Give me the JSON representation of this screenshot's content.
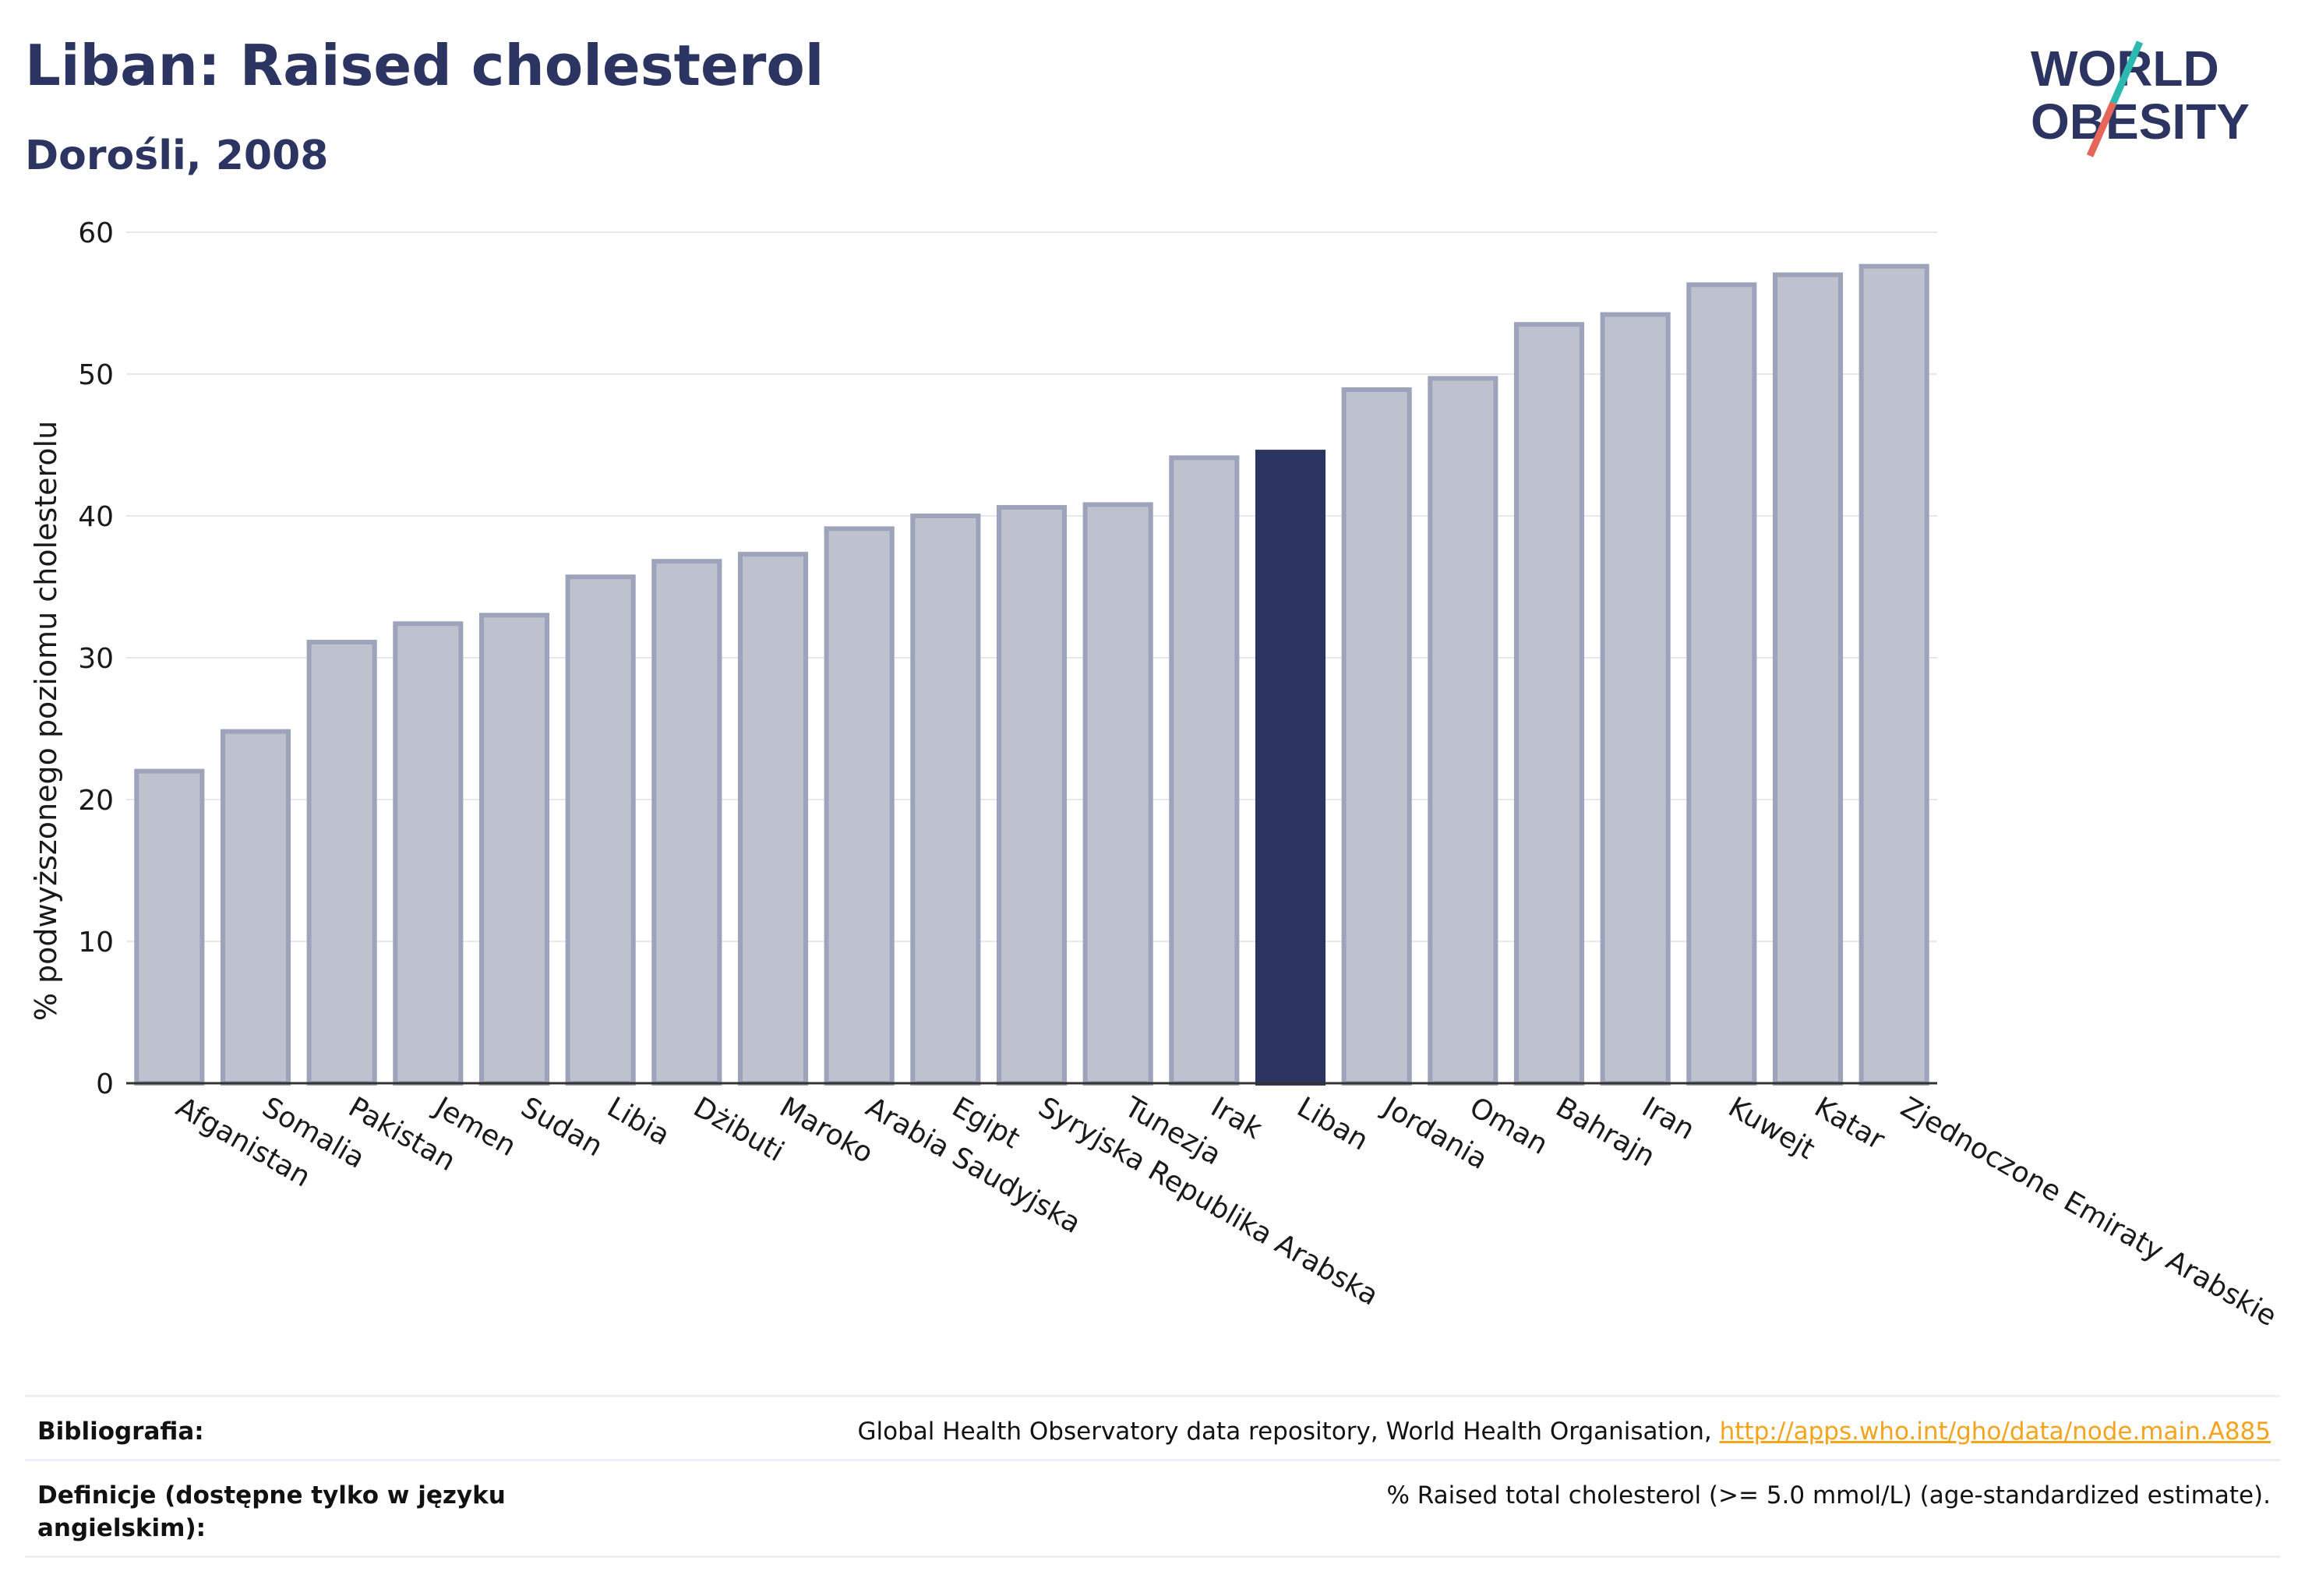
{
  "header": {
    "title": "Liban: Raised cholesterol",
    "subtitle": "Dorośli, 2008"
  },
  "logo": {
    "line1": "WORLD",
    "line2": "OBESITY"
  },
  "colors": {
    "bar_fill": "#bec2cf",
    "bar_stroke": "#9da3ba",
    "highlight": "#2c3561",
    "grid": "#e6e8ee",
    "text": "#1a1a1a",
    "link": "#f3a41c",
    "logo_teal": "#2bb9b0",
    "logo_red": "#e5675a"
  },
  "chart_data": {
    "type": "bar",
    "title": "Liban: Raised cholesterol",
    "subtitle": "Dorośli, 2008",
    "xlabel": "",
    "ylabel": "% podwyższonego poziomu cholesterolu",
    "ylim": [
      0,
      60
    ],
    "yticks": [
      0,
      10,
      20,
      30,
      40,
      50,
      60
    ],
    "grid": true,
    "highlight": "Liban",
    "categories": [
      "Afganistan",
      "Somalia",
      "Pakistan",
      "Jemen",
      "Sudan",
      "Libia",
      "Dżibuti",
      "Maroko",
      "Arabia Saudyjska",
      "Egipt",
      "Syryjska Republika Arabska",
      "Tunezja",
      "Irak",
      "Liban",
      "Jordania",
      "Oman",
      "Bahrajn",
      "Iran",
      "Kuwejt",
      "Katar",
      "Zjednoczone Emiraty Arabskie"
    ],
    "values": [
      22.0,
      24.8,
      31.1,
      32.4,
      33.0,
      35.7,
      36.8,
      37.3,
      39.1,
      40.0,
      40.6,
      40.8,
      44.1,
      44.5,
      48.9,
      49.7,
      53.5,
      54.2,
      56.3,
      57.0,
      57.6
    ]
  },
  "footer": {
    "bibliography_label": "Bibliografia:",
    "bibliography_text": "Global Health Observatory data repository, World Health Organisation, ",
    "bibliography_link": "http://apps.who.int/gho/data/node.main.A885",
    "definitions_label": "Definicje (dostępne tylko w języku angielskim):",
    "definitions_text": "% Raised total cholesterol (>= 5.0 mmol/L) (age-standardized estimate)."
  }
}
